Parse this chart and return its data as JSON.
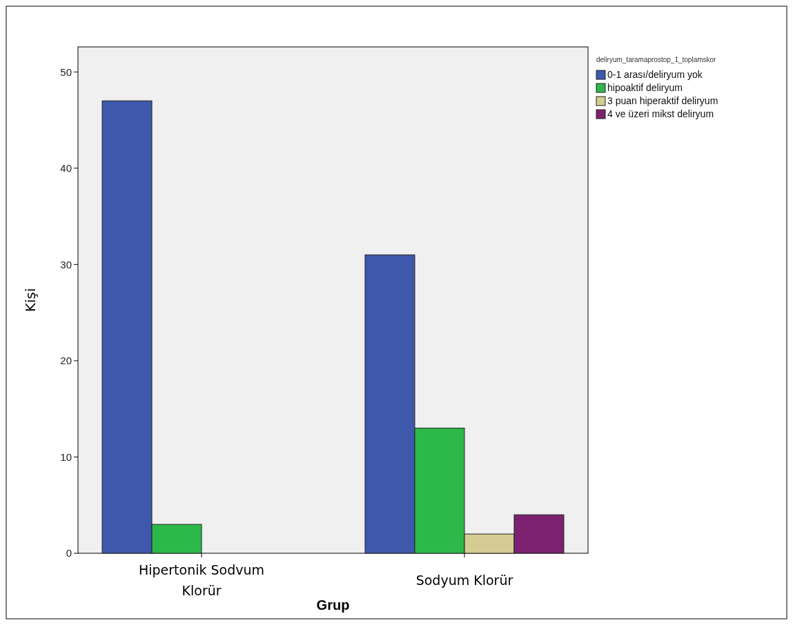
{
  "chart_data": {
    "type": "bar",
    "xlabel": "Grup",
    "ylabel": "Kişi",
    "legend_title": "deliryum_taramaprostop_1_toplamskor",
    "categories": [
      "Hipertonik Sodvum Klorür",
      "Sodyum Klorür"
    ],
    "series": [
      {
        "name": "0-1 arası/deliryum yok",
        "color": "#3e58ac",
        "values": [
          47,
          31
        ]
      },
      {
        "name": "hipoaktif deliryum",
        "color": "#2db84a",
        "values": [
          3,
          13
        ]
      },
      {
        "name": "3 puan hiperaktif deliryum",
        "color": "#d4cc93",
        "values": [
          null,
          2
        ]
      },
      {
        "name": "4 ve üzeri mikst deliryum",
        "color": "#7c2170",
        "values": [
          null,
          4
        ]
      }
    ],
    "ylim": [
      0,
      52.6
    ],
    "yticks": [
      0,
      10,
      20,
      30,
      40,
      50
    ],
    "grid": false,
    "legend": "top right"
  }
}
